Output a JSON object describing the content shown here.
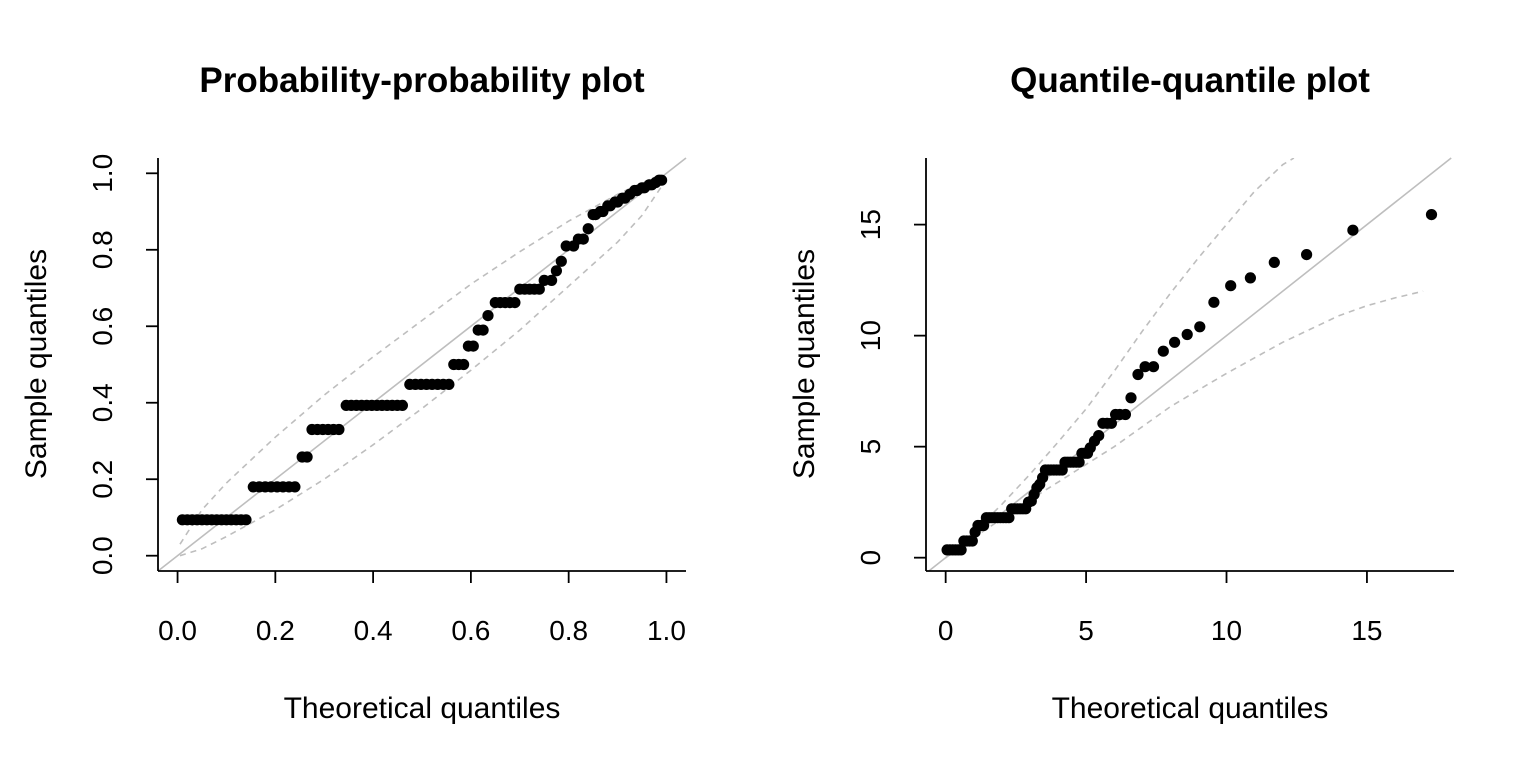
{
  "chart_data": [
    {
      "type": "scatter",
      "title": "Probability-probability plot",
      "xlabel": "Theoretical quantiles",
      "ylabel": "Sample quantiles",
      "xlim": [
        -0.04,
        1.04
      ],
      "ylim": [
        -0.04,
        1.04
      ],
      "x_ticks": [
        0.0,
        0.2,
        0.4,
        0.6,
        0.8,
        1.0
      ],
      "x_tick_labels": [
        "0.0",
        "0.2",
        "0.4",
        "0.6",
        "0.8",
        "1.0"
      ],
      "y_ticks": [
        0.0,
        0.2,
        0.4,
        0.6,
        0.8,
        1.0
      ],
      "y_tick_labels": [
        "0.0",
        "0.2",
        "0.4",
        "0.6",
        "0.8",
        "1.0"
      ],
      "reference_line": {
        "slope": 1,
        "intercept": 0,
        "color": "#bebebe"
      },
      "envelope_color": "#bebebe",
      "envelope_upper": [
        [
          0.005,
          0.03
        ],
        [
          0.05,
          0.12
        ],
        [
          0.1,
          0.19
        ],
        [
          0.2,
          0.31
        ],
        [
          0.3,
          0.42
        ],
        [
          0.4,
          0.52
        ],
        [
          0.5,
          0.615
        ],
        [
          0.6,
          0.71
        ],
        [
          0.7,
          0.795
        ],
        [
          0.8,
          0.875
        ],
        [
          0.9,
          0.945
        ],
        [
          0.95,
          0.975
        ],
        [
          0.995,
          1.0
        ]
      ],
      "envelope_lower": [
        [
          0.005,
          0.0
        ],
        [
          0.05,
          0.018
        ],
        [
          0.1,
          0.05
        ],
        [
          0.2,
          0.12
        ],
        [
          0.3,
          0.2
        ],
        [
          0.4,
          0.29
        ],
        [
          0.5,
          0.385
        ],
        [
          0.6,
          0.485
        ],
        [
          0.7,
          0.59
        ],
        [
          0.8,
          0.705
        ],
        [
          0.9,
          0.82
        ],
        [
          0.95,
          0.89
        ],
        [
          0.995,
          0.975
        ]
      ],
      "groups": [
        {
          "y": 0.094,
          "x_from": 0.01,
          "x_to": 0.14,
          "n": 14
        },
        {
          "y": 0.18,
          "x_from": 0.155,
          "x_to": 0.24,
          "n": 8
        },
        {
          "y": 0.258,
          "x_from": 0.255,
          "x_to": 0.265,
          "n": 2
        },
        {
          "y": 0.33,
          "x_from": 0.275,
          "x_to": 0.33,
          "n": 6
        },
        {
          "y": 0.393,
          "x_from": 0.345,
          "x_to": 0.46,
          "n": 12
        },
        {
          "y": 0.448,
          "x_from": 0.475,
          "x_to": 0.555,
          "n": 8
        },
        {
          "y": 0.5,
          "x_from": 0.565,
          "x_to": 0.585,
          "n": 3
        },
        {
          "y": 0.548,
          "x_from": 0.595,
          "x_to": 0.605,
          "n": 2
        },
        {
          "y": 0.59,
          "x_from": 0.615,
          "x_to": 0.625,
          "n": 2
        },
        {
          "y": 0.628,
          "x_from": 0.635,
          "x_to": 0.635,
          "n": 1
        },
        {
          "y": 0.662,
          "x_from": 0.65,
          "x_to": 0.69,
          "n": 5
        },
        {
          "y": 0.697,
          "x_from": 0.7,
          "x_to": 0.74,
          "n": 5
        },
        {
          "y": 0.72,
          "x_from": 0.75,
          "x_to": 0.765,
          "n": 2
        },
        {
          "y": 0.745,
          "x_from": 0.775,
          "x_to": 0.775,
          "n": 1
        },
        {
          "y": 0.77,
          "x_from": 0.785,
          "x_to": 0.785,
          "n": 1
        },
        {
          "y": 0.81,
          "x_from": 0.795,
          "x_to": 0.81,
          "n": 2
        },
        {
          "y": 0.828,
          "x_from": 0.82,
          "x_to": 0.83,
          "n": 2
        },
        {
          "y": 0.855,
          "x_from": 0.84,
          "x_to": 0.84,
          "n": 1
        },
        {
          "y": 0.892,
          "x_from": 0.85,
          "x_to": 0.855,
          "n": 2
        },
        {
          "y": 0.9,
          "x_from": 0.865,
          "x_to": 0.87,
          "n": 2
        },
        {
          "y": 0.915,
          "x_from": 0.88,
          "x_to": 0.885,
          "n": 2
        },
        {
          "y": 0.925,
          "x_from": 0.895,
          "x_to": 0.9,
          "n": 2
        },
        {
          "y": 0.935,
          "x_from": 0.91,
          "x_to": 0.915,
          "n": 2
        },
        {
          "y": 0.945,
          "x_from": 0.925,
          "x_to": 0.925,
          "n": 1
        },
        {
          "y": 0.955,
          "x_from": 0.935,
          "x_to": 0.94,
          "n": 2
        },
        {
          "y": 0.962,
          "x_from": 0.95,
          "x_to": 0.955,
          "n": 2
        },
        {
          "y": 0.97,
          "x_from": 0.965,
          "x_to": 0.97,
          "n": 2
        },
        {
          "y": 0.976,
          "x_from": 0.978,
          "x_to": 0.978,
          "n": 1
        },
        {
          "y": 0.982,
          "x_from": 0.985,
          "x_to": 0.99,
          "n": 2
        }
      ]
    },
    {
      "type": "scatter",
      "title": "Quantile-quantile plot",
      "xlabel": "Theoretical quantiles",
      "ylabel": "Sample quantiles",
      "xlim": [
        -0.7,
        18.1
      ],
      "ylim": [
        -0.6,
        18.0
      ],
      "x_ticks": [
        0,
        5,
        10,
        15
      ],
      "x_tick_labels": [
        "0",
        "5",
        "10",
        "15"
      ],
      "y_ticks": [
        0,
        5,
        10,
        15
      ],
      "y_tick_labels": [
        "0",
        "5",
        "10",
        "15"
      ],
      "reference_line": {
        "slope": 1,
        "intercept": 0,
        "color": "#bebebe"
      },
      "envelope_color": "#bebebe",
      "envelope_upper": [
        [
          0.0,
          0.0
        ],
        [
          1.0,
          1.15
        ],
        [
          2.0,
          2.4
        ],
        [
          3.0,
          3.75
        ],
        [
          4.0,
          5.2
        ],
        [
          5.0,
          6.7
        ],
        [
          6.0,
          8.4
        ],
        [
          7.0,
          10.2
        ],
        [
          8.0,
          11.9
        ],
        [
          9.0,
          13.5
        ],
        [
          10.0,
          15.0
        ],
        [
          11.0,
          16.5
        ],
        [
          12.0,
          17.7
        ],
        [
          12.4,
          18.0
        ]
      ],
      "envelope_lower": [
        [
          0.0,
          0.0
        ],
        [
          1.0,
          0.9
        ],
        [
          2.0,
          1.75
        ],
        [
          3.0,
          2.6
        ],
        [
          4.0,
          3.4
        ],
        [
          5.0,
          4.2
        ],
        [
          6.0,
          5.0
        ],
        [
          7.0,
          5.9
        ],
        [
          8.0,
          6.8
        ],
        [
          9.0,
          7.55
        ],
        [
          10.0,
          8.3
        ],
        [
          11.0,
          9.0
        ],
        [
          12.0,
          9.7
        ],
        [
          13.0,
          10.3
        ],
        [
          14.0,
          10.9
        ],
        [
          15.0,
          11.35
        ],
        [
          16.0,
          11.7
        ],
        [
          17.0,
          12.0
        ]
      ],
      "x": [
        0.05,
        0.15,
        0.25,
        0.35,
        0.45,
        0.55,
        0.65,
        0.75,
        0.85,
        0.95,
        1.05,
        1.15,
        1.25,
        1.35,
        1.45,
        1.55,
        1.65,
        1.75,
        1.85,
        1.95,
        2.05,
        2.15,
        2.25,
        2.35,
        2.45,
        2.55,
        2.65,
        2.75,
        2.85,
        2.95,
        3.05,
        3.15,
        3.25,
        3.35,
        3.45,
        3.55,
        3.65,
        3.75,
        3.85,
        3.95,
        4.05,
        4.15,
        4.25,
        4.35,
        4.45,
        4.55,
        4.65,
        4.75,
        4.85,
        4.95,
        5.05,
        5.15,
        5.3,
        5.45,
        5.6,
        5.75,
        5.9,
        6.05,
        6.2,
        6.4,
        6.6,
        6.85,
        7.1,
        7.4,
        7.75,
        8.15,
        8.6,
        9.05,
        9.55,
        10.15,
        10.85,
        11.7,
        12.85,
        14.5,
        17.3
      ],
      "y": [
        0.35,
        0.35,
        0.35,
        0.35,
        0.35,
        0.35,
        0.75,
        0.75,
        0.75,
        0.75,
        1.15,
        1.45,
        1.45,
        1.45,
        1.8,
        1.8,
        1.8,
        1.8,
        1.8,
        1.8,
        1.8,
        1.8,
        1.8,
        2.2,
        2.2,
        2.2,
        2.2,
        2.2,
        2.2,
        2.5,
        2.55,
        2.85,
        3.15,
        3.3,
        3.6,
        3.95,
        3.95,
        3.95,
        3.95,
        3.95,
        3.95,
        3.95,
        4.3,
        4.3,
        4.3,
        4.3,
        4.3,
        4.3,
        4.7,
        4.7,
        4.7,
        4.95,
        5.25,
        5.5,
        6.05,
        6.05,
        6.05,
        6.45,
        6.45,
        6.45,
        7.2,
        8.25,
        8.6,
        8.6,
        9.3,
        9.7,
        10.05,
        10.4,
        11.5,
        12.25,
        12.6,
        13.3,
        13.65,
        14.75,
        15.45
      ]
    }
  ]
}
